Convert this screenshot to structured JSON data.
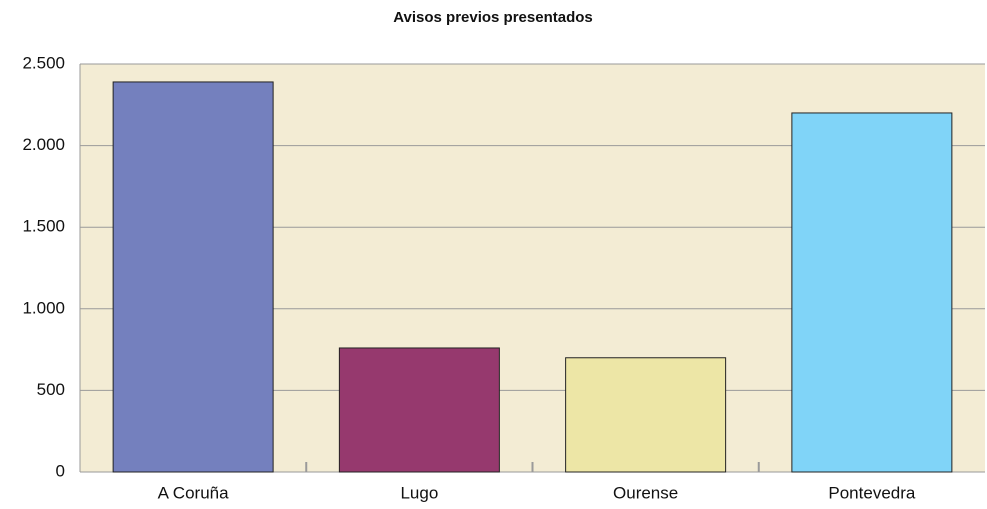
{
  "chart_data": {
    "type": "bar",
    "title": "Avisos previos presentados",
    "categories": [
      "A Coruña",
      "Lugo",
      "Ourense",
      "Pontevedra"
    ],
    "values": [
      2390,
      760,
      700,
      2200
    ],
    "colors": [
      "#7480be",
      "#96396e",
      "#ede6a6",
      "#80d4f8"
    ],
    "ylim": [
      0,
      2500
    ],
    "yticks": [
      0,
      500,
      {
        "value": 1000,
        "label": "1.000"
      },
      {
        "value": 1500,
        "label": "1.500"
      },
      {
        "value": 2000,
        "label": "2.000"
      },
      {
        "value": 2500,
        "label": "2.500"
      }
    ],
    "grid": true
  }
}
